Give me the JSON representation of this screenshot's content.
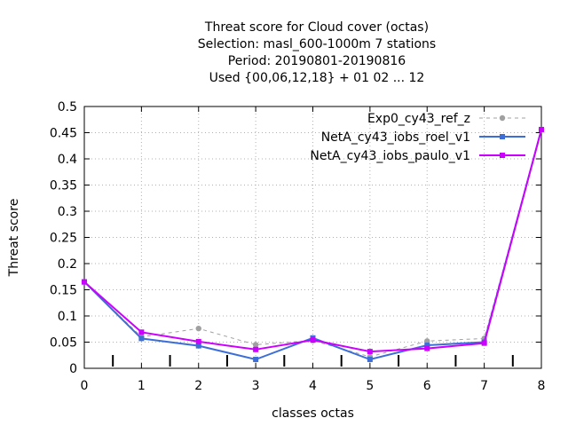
{
  "chart_data": {
    "type": "line",
    "title": [
      "Threat score  for Cloud cover (octas)",
      "Selection: masl_600-1000m      7 stations",
      "Period: 20190801-20190816",
      "Used {00,06,12,18} + 01 02 ... 12"
    ],
    "xlabel": "classes octas",
    "ylabel": "Threat score",
    "xlim": [
      0,
      8
    ],
    "ylim": [
      0,
      0.5
    ],
    "x_ticks": [
      "0",
      "1",
      "2",
      "3",
      "4",
      "5",
      "6",
      "7",
      "8"
    ],
    "y_ticks": [
      "0",
      "0.05",
      "0.1",
      "0.15",
      "0.2",
      "0.25",
      "0.3",
      "0.35",
      "0.4",
      "0.45",
      "0.5"
    ],
    "grid": true,
    "legend_position": "top-right",
    "x": [
      0,
      1,
      2,
      3,
      4,
      5,
      6,
      7,
      8
    ],
    "series": [
      {
        "name": "Exp0_cy43_ref_z",
        "color": "#a0a0a0",
        "dashed": true,
        "values": [
          0.165,
          0.06,
          0.076,
          0.045,
          0.053,
          0.022,
          0.052,
          0.057,
          0.456
        ]
      },
      {
        "name": "NetA_cy43_iobs_roel_v1",
        "color": "#3d6ed8",
        "dashed": false,
        "values": [
          0.165,
          0.057,
          0.043,
          0.017,
          0.058,
          0.017,
          0.044,
          0.05,
          0.456
        ]
      },
      {
        "name": "NetA_cy43_iobs_paulo_v1",
        "color": "#cc00ff",
        "dashed": false,
        "values": [
          0.165,
          0.069,
          0.051,
          0.036,
          0.054,
          0.032,
          0.038,
          0.048,
          0.456
        ]
      }
    ]
  }
}
